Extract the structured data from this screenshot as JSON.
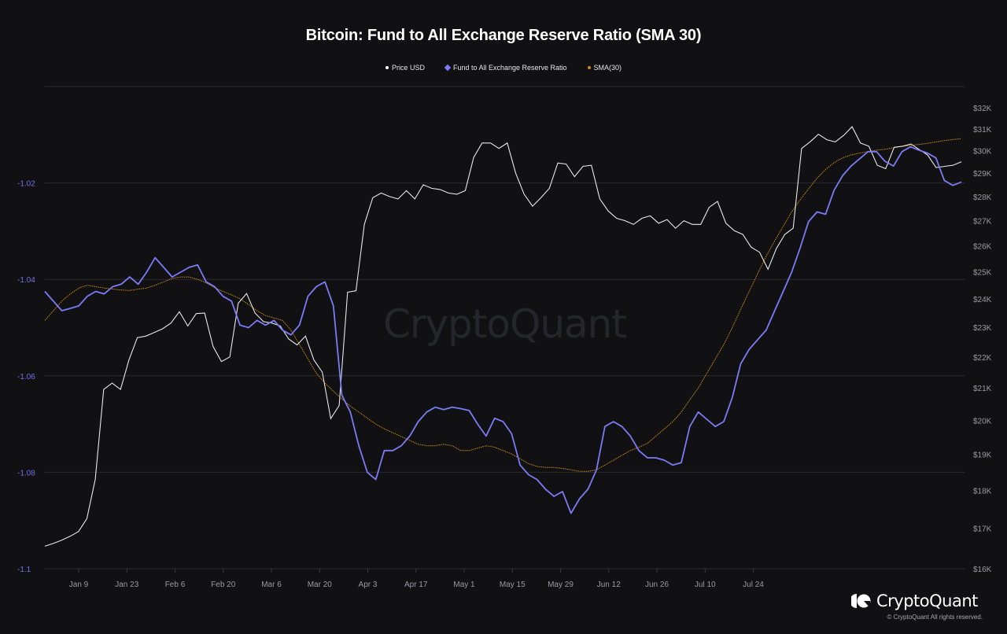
{
  "header": {
    "title": "Bitcoin: Fund to All Exchange Reserve Ratio (SMA 30)"
  },
  "legend": [
    {
      "label": "Price USD",
      "color": "#ffffff",
      "marker": "dot"
    },
    {
      "label": "Fund to All Exchange Reserve Ratio",
      "color": "#7b7bf5",
      "marker": "diamond"
    },
    {
      "label": "SMA(30)",
      "color": "#c98a16",
      "marker": "dot"
    }
  ],
  "watermark": "CryptoQuant",
  "brand": {
    "name": "CryptoQuant",
    "copyright": "© CryptoQuant All rights reserved."
  },
  "colors": {
    "background": "#111114",
    "grid": "#2a2a30",
    "price": "#ffffff",
    "ratio": "#7b7bf5",
    "sma": "#c98a16"
  },
  "chart_data": {
    "type": "line",
    "title": "Bitcoin: Fund to All Exchange Reserve Ratio (SMA 30)",
    "xlabel": "",
    "ylabel_left": "Fund to All Exchange Reserve Ratio",
    "ylabel_right": "Price USD",
    "ylim_left": [
      -1.1,
      -1.0
    ],
    "ylim_right": [
      16000,
      32000
    ],
    "right_scale": "log",
    "grid": true,
    "legend_position": "top",
    "left_ticks": [
      "-1.02",
      "-1.04",
      "-1.06",
      "-1.08",
      "-1.1"
    ],
    "right_ticks": [
      "$32K",
      "$31K",
      "$30K",
      "$29K",
      "$28K",
      "$27K",
      "$26K",
      "$25K",
      "$24K",
      "$23K",
      "$22K",
      "$21K",
      "$20K",
      "$19K",
      "$18K",
      "$17K",
      "$16K"
    ],
    "x_ticks": [
      "Jan 9",
      "Jan 23",
      "Feb 6",
      "Feb 20",
      "Mar 6",
      "Mar 20",
      "Apr 3",
      "Apr 17",
      "May 1",
      "May 15",
      "May 29",
      "Jun 12",
      "Jun 26",
      "Jul 10",
      "Jul 24"
    ],
    "x_start": "Dec 31",
    "x_step_days": 2,
    "series": [
      {
        "name": "Price USD",
        "unit": "USD",
        "values": [
          16550,
          16620,
          16700,
          16800,
          16920,
          17250,
          18300,
          20950,
          21150,
          20950,
          21900,
          22650,
          22700,
          22820,
          22950,
          23150,
          23550,
          23050,
          23480,
          23500,
          22350,
          21850,
          22000,
          23850,
          24200,
          23500,
          23200,
          23150,
          23050,
          22600,
          22400,
          22700,
          21900,
          21500,
          20050,
          20450,
          24250,
          24300,
          26850,
          27950,
          28150,
          28000,
          27900,
          28250,
          27900,
          28500,
          28350,
          28300,
          28150,
          28100,
          28250,
          29700,
          30350,
          30350,
          30100,
          30350,
          29000,
          28100,
          27600,
          27950,
          28350,
          29450,
          29400,
          28850,
          29300,
          29350,
          27900,
          27400,
          27100,
          27000,
          26850,
          27100,
          27200,
          26900,
          27050,
          26700,
          27000,
          26850,
          26850,
          27550,
          27800,
          26900,
          26600,
          26450,
          25950,
          25750,
          25100,
          25900,
          26450,
          26700,
          30100,
          30400,
          30750,
          30500,
          30400,
          30700,
          31100,
          30350,
          30200,
          29350,
          29200,
          30150,
          30200,
          30300,
          30050,
          29800,
          29250,
          29300,
          29350,
          29500
        ],
        "min_approx": 16500,
        "max_approx": 31200
      },
      {
        "name": "Fund to All Exchange Reserve Ratio",
        "values": [
          -1.0425,
          -1.0445,
          -1.0465,
          -1.046,
          -1.0455,
          -1.0435,
          -1.0425,
          -1.043,
          -1.0415,
          -1.041,
          -1.0395,
          -1.041,
          -1.0385,
          -1.0355,
          -1.0375,
          -1.0395,
          -1.0385,
          -1.0375,
          -1.037,
          -1.0405,
          -1.0415,
          -1.0435,
          -1.0445,
          -1.0495,
          -1.05,
          -1.0485,
          -1.0495,
          -1.0485,
          -1.0505,
          -1.0515,
          -1.0495,
          -1.0435,
          -1.0415,
          -1.0405,
          -1.0455,
          -1.064,
          -1.0675,
          -1.0745,
          -1.08,
          -1.0815,
          -1.0755,
          -1.0755,
          -1.0745,
          -1.0725,
          -1.0695,
          -1.0675,
          -1.0665,
          -1.067,
          -1.0665,
          -1.0668,
          -1.0672,
          -1.07,
          -1.0725,
          -1.0688,
          -1.0695,
          -1.072,
          -1.0785,
          -1.0805,
          -1.0815,
          -1.0835,
          -1.085,
          -1.084,
          -1.0885,
          -1.0855,
          -1.0835,
          -1.0795,
          -1.0705,
          -1.0695,
          -1.0705,
          -1.0725,
          -1.0755,
          -1.077,
          -1.077,
          -1.0775,
          -1.0785,
          -1.078,
          -1.0705,
          -1.0675,
          -1.069,
          -1.0705,
          -1.0695,
          -1.0645,
          -1.0575,
          -1.0545,
          -1.0525,
          -1.0505,
          -1.0465,
          -1.0425,
          -1.0385,
          -1.0335,
          -1.028,
          -1.026,
          -1.0265,
          -1.0215,
          -1.0185,
          -1.0165,
          -1.015,
          -1.0135,
          -1.0135,
          -1.0155,
          -1.0165,
          -1.0135,
          -1.0125,
          -1.0132,
          -1.0138,
          -1.0148,
          -1.0195,
          -1.0205,
          -1.0198
        ],
        "min_approx": -1.0885,
        "max_approx": -1.0125
      },
      {
        "name": "SMA(30)",
        "values": [
          -1.0485,
          -1.0465,
          -1.0445,
          -1.043,
          -1.0418,
          -1.0412,
          -1.0415,
          -1.0418,
          -1.042,
          -1.0422,
          -1.0423,
          -1.042,
          -1.0418,
          -1.0412,
          -1.0405,
          -1.0398,
          -1.0395,
          -1.0395,
          -1.04,
          -1.0407,
          -1.0417,
          -1.0425,
          -1.0432,
          -1.044,
          -1.0452,
          -1.0465,
          -1.0475,
          -1.048,
          -1.0485,
          -1.0505,
          -1.0535,
          -1.0565,
          -1.0595,
          -1.0615,
          -1.0632,
          -1.0648,
          -1.0663,
          -1.0675,
          -1.0688,
          -1.07,
          -1.071,
          -1.0718,
          -1.0726,
          -1.0734,
          -1.0742,
          -1.0745,
          -1.0745,
          -1.0742,
          -1.0745,
          -1.0755,
          -1.0755,
          -1.075,
          -1.0745,
          -1.0748,
          -1.0755,
          -1.0762,
          -1.0772,
          -1.0782,
          -1.0788,
          -1.079,
          -1.079,
          -1.0792,
          -1.0795,
          -1.0798,
          -1.0798,
          -1.0795,
          -1.0785,
          -1.0775,
          -1.0765,
          -1.0755,
          -1.0748,
          -1.074,
          -1.0725,
          -1.071,
          -1.0695,
          -1.0675,
          -1.065,
          -1.0625,
          -1.0595,
          -1.0565,
          -1.0535,
          -1.05,
          -1.0462,
          -1.0425,
          -1.0388,
          -1.0352,
          -1.032,
          -1.029,
          -1.026,
          -1.0235,
          -1.0212,
          -1.019,
          -1.0172,
          -1.0158,
          -1.0148,
          -1.0142,
          -1.0138,
          -1.0135,
          -1.0132,
          -1.013,
          -1.0127,
          -1.0124,
          -1.0122,
          -1.012,
          -1.0118,
          -1.0115,
          -1.0112,
          -1.011,
          -1.0108
        ],
        "min_approx": -1.0798,
        "max_approx": -1.0108
      }
    ]
  }
}
